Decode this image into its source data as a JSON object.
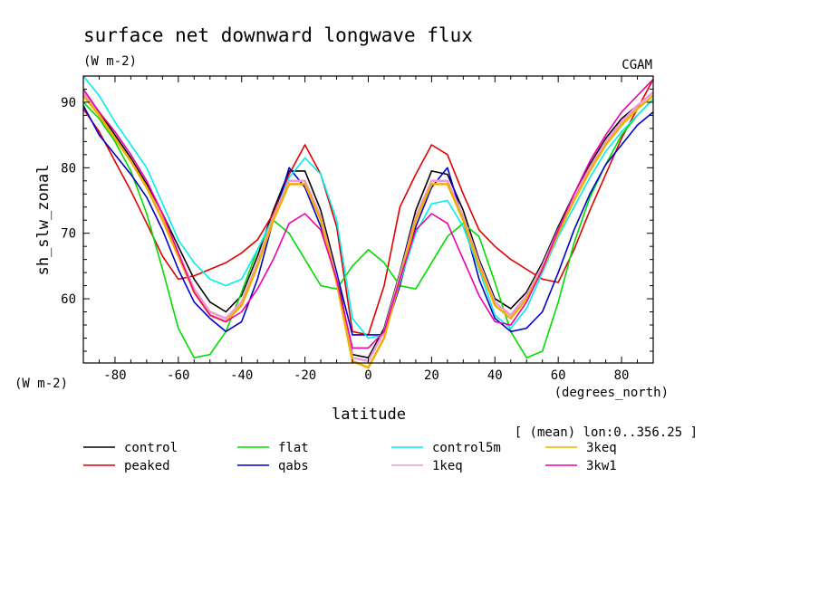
{
  "chart_data": {
    "type": "line",
    "title": "surface net downward longwave flux",
    "units": "(W m-2)",
    "units_left": "(W m-2)",
    "source": "CGAM",
    "ylabel": "sh_slw_zonal",
    "xlabel": "latitude",
    "xunits": "(degrees_north)",
    "subset": "[ (mean) lon:0..356.25 ]",
    "xlim": [
      -90,
      90
    ],
    "ylim": [
      50.2,
      94
    ],
    "xticks": [
      -80,
      -60,
      -40,
      -20,
      0,
      20,
      40,
      60,
      80
    ],
    "yticks": [
      60,
      70,
      80,
      90
    ],
    "grid": false,
    "legend_position": "bottom",
    "x": [
      -90,
      -85,
      -80,
      -75,
      -70,
      -65,
      -60,
      -55,
      -50,
      -45,
      -40,
      -35,
      -30,
      -25,
      -20,
      -15,
      -10,
      -5,
      0,
      5,
      10,
      15,
      20,
      25,
      30,
      35,
      40,
      45,
      50,
      55,
      60,
      65,
      70,
      75,
      80,
      85,
      90
    ],
    "series": [
      {
        "name": "control",
        "color": "#000000",
        "values": [
          91.5,
          88.5,
          85.0,
          81.5,
          77.5,
          73.0,
          68.0,
          63.0,
          59.5,
          58.0,
          60.5,
          66.5,
          73.5,
          79.5,
          79.5,
          73.5,
          64.0,
          51.5,
          51.0,
          55.5,
          64.0,
          73.5,
          79.5,
          79.0,
          73.5,
          66.0,
          60.0,
          58.5,
          61.0,
          65.5,
          71.0,
          76.0,
          80.5,
          84.5,
          87.5,
          89.5,
          91.5
        ]
      },
      {
        "name": "peaked",
        "color": "#e00000",
        "values": [
          89.0,
          85.5,
          81.0,
          76.5,
          71.5,
          66.5,
          63.0,
          63.5,
          64.5,
          65.5,
          67.0,
          69.0,
          73.0,
          79.0,
          83.5,
          79.0,
          71.0,
          55.0,
          54.5,
          62.0,
          74.0,
          79.0,
          83.5,
          82.0,
          76.0,
          70.5,
          68.0,
          66.0,
          64.5,
          63.0,
          62.5,
          67.5,
          73.5,
          79.0,
          84.5,
          89.0,
          93.5
        ]
      },
      {
        "name": "flat",
        "color": "#00dd00",
        "values": [
          90.0,
          87.5,
          84.0,
          79.5,
          73.0,
          64.5,
          55.5,
          51.0,
          51.5,
          55.0,
          61.0,
          67.5,
          72.0,
          70.0,
          66.0,
          62.0,
          61.5,
          65.0,
          67.5,
          65.5,
          62.0,
          61.5,
          65.5,
          69.5,
          71.5,
          69.5,
          62.5,
          55.0,
          51.0,
          52.0,
          59.5,
          68.5,
          75.5,
          80.5,
          85.0,
          88.0,
          90.5
        ]
      },
      {
        "name": "qabs",
        "color": "#0000cc",
        "values": [
          89.5,
          85.0,
          82.0,
          79.0,
          75.5,
          70.5,
          64.5,
          59.5,
          57.0,
          55.0,
          56.5,
          63.0,
          72.0,
          80.0,
          77.0,
          71.0,
          64.0,
          54.5,
          54.5,
          54.5,
          62.0,
          71.0,
          77.0,
          80.0,
          72.0,
          63.0,
          57.0,
          55.0,
          55.5,
          58.0,
          64.0,
          70.5,
          76.0,
          80.5,
          83.5,
          86.5,
          88.5
        ]
      },
      {
        "name": "control5m",
        "color": "#00eeee",
        "values": [
          94.0,
          91.0,
          87.0,
          83.5,
          80.0,
          74.5,
          69.0,
          65.5,
          63.0,
          62.0,
          63.0,
          67.5,
          72.5,
          78.5,
          81.5,
          79.0,
          72.0,
          57.0,
          54.0,
          54.5,
          62.5,
          70.0,
          74.5,
          75.0,
          71.0,
          64.5,
          57.5,
          55.5,
          58.5,
          64.0,
          69.5,
          74.0,
          78.5,
          82.5,
          85.5,
          88.0,
          90.5
        ]
      },
      {
        "name": "1keq",
        "color": "#ee99dd",
        "values": [
          91.5,
          88.0,
          84.5,
          81.0,
          77.0,
          72.5,
          67.0,
          61.5,
          58.0,
          57.0,
          59.5,
          65.5,
          72.5,
          78.0,
          78.0,
          72.5,
          63.0,
          51.0,
          50.5,
          55.0,
          63.5,
          72.5,
          78.0,
          78.0,
          72.5,
          65.5,
          59.5,
          57.5,
          60.5,
          65.0,
          70.5,
          75.5,
          80.0,
          84.0,
          87.0,
          89.5,
          91.5
        ]
      },
      {
        "name": "3keq",
        "color": "#f0b000",
        "values": [
          91.0,
          88.0,
          84.5,
          81.0,
          77.0,
          72.0,
          66.5,
          61.0,
          57.5,
          56.5,
          59.0,
          65.0,
          72.0,
          77.5,
          77.5,
          72.0,
          62.5,
          50.5,
          49.5,
          54.0,
          63.0,
          72.0,
          77.5,
          77.5,
          72.0,
          65.0,
          59.0,
          57.0,
          60.0,
          64.5,
          70.0,
          75.0,
          79.5,
          83.5,
          86.5,
          89.0,
          91.0
        ]
      },
      {
        "name": "3kw1",
        "color": "#ee00aa",
        "values": [
          92.0,
          88.5,
          85.5,
          82.0,
          78.0,
          73.0,
          67.0,
          61.0,
          57.5,
          56.5,
          58.0,
          61.5,
          66.0,
          71.5,
          73.0,
          70.5,
          63.0,
          52.5,
          52.5,
          55.0,
          63.0,
          70.5,
          73.0,
          71.5,
          66.0,
          60.5,
          56.5,
          56.0,
          59.5,
          64.5,
          70.5,
          76.0,
          81.0,
          85.0,
          88.5,
          91.0,
          93.5
        ]
      }
    ]
  }
}
